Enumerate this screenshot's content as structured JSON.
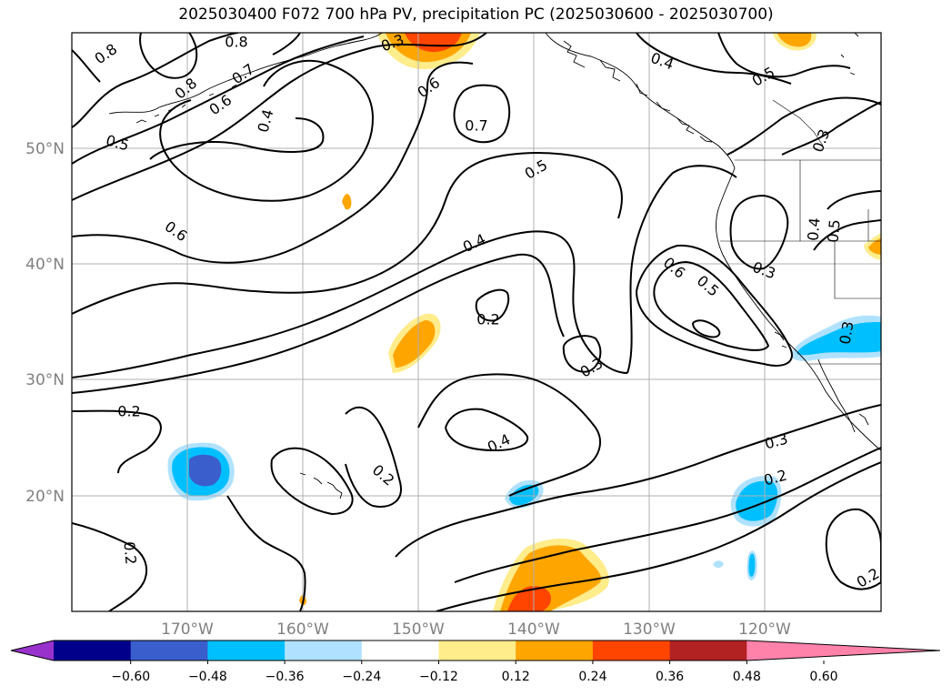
{
  "title": "2025030400 F072 700 hPa PV, precipitation PC (2025030600 - 2025030700)",
  "map": {
    "lat_labels": [
      "50°N",
      "40°N",
      "30°N",
      "20°N"
    ],
    "lon_labels": [
      "170°W",
      "160°W",
      "150°W",
      "140°W",
      "130°W",
      "120°W"
    ]
  },
  "contour_labels": [
    {
      "text": "0.8",
      "rot": -35
    },
    {
      "text": "0.8",
      "rot": 0
    },
    {
      "text": "0.3",
      "rot": -20
    },
    {
      "text": "0.4",
      "rot": 20
    },
    {
      "text": "0.5",
      "rot": -30
    },
    {
      "text": "0.8",
      "rot": -40
    },
    {
      "text": "0.7",
      "rot": -35
    },
    {
      "text": "0.6",
      "rot": -35
    },
    {
      "text": "0.4",
      "rot": -75
    },
    {
      "text": "0.6",
      "rot": -35
    },
    {
      "text": "0.7",
      "rot": 0
    },
    {
      "text": "0.3",
      "rot": -70
    },
    {
      "text": "0.5",
      "rot": 15
    },
    {
      "text": "0.5",
      "rot": -30
    },
    {
      "text": "0.4",
      "rot": -85
    },
    {
      "text": "0.5",
      "rot": -85
    },
    {
      "text": "0.6",
      "rot": 35
    },
    {
      "text": "0.4",
      "rot": -25
    },
    {
      "text": "0.6",
      "rot": 40
    },
    {
      "text": "0.5",
      "rot": 40
    },
    {
      "text": "0.3",
      "rot": 20
    },
    {
      "text": "0.2",
      "rot": 0
    },
    {
      "text": "0.3",
      "rot": -80
    },
    {
      "text": "0.3",
      "rot": -30
    },
    {
      "text": "0.2",
      "rot": 0
    },
    {
      "text": "0.4",
      "rot": -25
    },
    {
      "text": "0.2",
      "rot": 40
    },
    {
      "text": "0.3",
      "rot": -15
    },
    {
      "text": "0.2",
      "rot": -15
    },
    {
      "text": "0.2",
      "rot": 85
    },
    {
      "text": "0.2",
      "rot": -30
    }
  ],
  "colorbar": {
    "ticks": [
      "−0.60",
      "−0.48",
      "−0.36",
      "−0.24",
      "−0.12",
      "0.12",
      "0.24",
      "0.36",
      "0.48",
      "0.60"
    ],
    "colors": [
      "#9932cc",
      "#00008b",
      "#3a5fcd",
      "#00bfff",
      "#b0e2ff",
      "#ffffff",
      "#ffec8b",
      "#ffa500",
      "#ff4500",
      "#b22222",
      "#ff82ab"
    ]
  }
}
